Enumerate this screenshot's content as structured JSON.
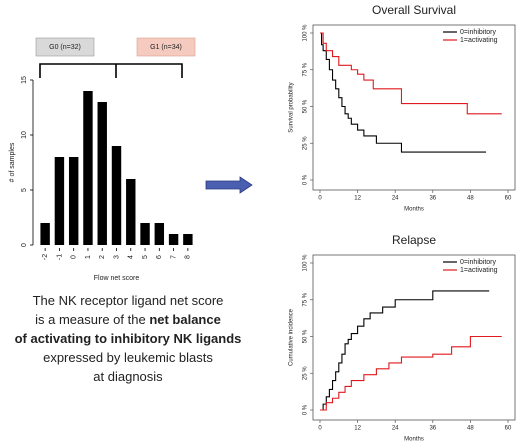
{
  "chart_data": [
    {
      "type": "bar",
      "categories": [
        "-2",
        "-1",
        "0",
        "1",
        "2",
        "3",
        "4",
        "5",
        "6",
        "7",
        "8"
      ],
      "values": [
        2,
        8,
        8,
        14,
        13,
        9,
        6,
        2,
        2,
        1,
        1
      ],
      "color": "#000000",
      "ylim": [
        0,
        15
      ],
      "yticks": [
        0,
        5,
        10,
        15
      ],
      "ylabel": "# of samples",
      "xlabel": "Flow net score",
      "group_labels": [
        "G0 (n=32)",
        "G1 (n=34)"
      ]
    },
    {
      "type": "line",
      "step": true,
      "title": "Overall Survival",
      "xlabel": "Months",
      "ylabel": "Survival probability",
      "xlim": [
        0,
        60
      ],
      "xticks": [
        0,
        12,
        24,
        36,
        48,
        60
      ],
      "ylim": [
        0,
        100
      ],
      "yticks": [
        {
          "value": 0,
          "label": "0 %"
        },
        {
          "value": 25,
          "label": "25 %"
        },
        {
          "value": 50,
          "label": "50 %"
        },
        {
          "value": 75,
          "label": "75 %"
        },
        {
          "value": 100,
          "label": "100 %"
        }
      ],
      "legend": "upper right",
      "series": [
        {
          "name": "0=inhibitory",
          "color": "#000000",
          "x": [
            0,
            0.5,
            1,
            2,
            3,
            4,
            5,
            6,
            7,
            8,
            9,
            10,
            12,
            14,
            18,
            26,
            53
          ],
          "values": [
            100,
            92,
            88,
            82,
            75,
            68,
            62,
            56,
            50,
            45,
            42,
            38,
            34,
            30,
            25,
            19,
            19
          ]
        },
        {
          "name": "1=activating",
          "color": "#e0191e",
          "x": [
            0,
            1,
            2,
            4,
            6,
            10,
            12,
            14,
            17,
            26,
            47,
            58
          ],
          "values": [
            100,
            93,
            88,
            84,
            78,
            75,
            72,
            68,
            62,
            52,
            45,
            45
          ]
        }
      ]
    },
    {
      "type": "line",
      "step": true,
      "title": "Relapse",
      "xlabel": "Months",
      "ylabel": "Cumulative incidence",
      "xlim": [
        0,
        60
      ],
      "xticks": [
        0,
        12,
        24,
        36,
        48,
        60
      ],
      "ylim": [
        0,
        100
      ],
      "yticks": [
        {
          "value": 0,
          "label": "0 %"
        },
        {
          "value": 25,
          "label": "25 %"
        },
        {
          "value": 50,
          "label": "50 %"
        },
        {
          "value": 75,
          "label": "75 %"
        },
        {
          "value": 100,
          "label": "100 %"
        }
      ],
      "legend": "upper right",
      "series": [
        {
          "name": "0=inhibitory",
          "color": "#000000",
          "x": [
            0,
            1,
            2,
            3,
            4,
            5,
            6,
            7,
            8,
            9,
            10,
            12,
            14,
            16,
            20,
            24,
            36,
            54
          ],
          "values": [
            0,
            4,
            9,
            14,
            20,
            26,
            32,
            38,
            45,
            48,
            52,
            57,
            62,
            66,
            70,
            75,
            81,
            81
          ]
        },
        {
          "name": "1=activating",
          "color": "#e0191e",
          "x": [
            0,
            2,
            4,
            6,
            8,
            10,
            14,
            18,
            22,
            26,
            36,
            42,
            48,
            58
          ],
          "values": [
            0,
            5,
            8,
            12,
            16,
            20,
            24,
            28,
            32,
            36,
            38,
            43,
            50,
            50
          ]
        }
      ]
    }
  ],
  "caption": [
    [
      {
        "text": "The NK receptor ligand net score",
        "bold": false
      }
    ],
    [
      {
        "text": "is a measure of the ",
        "bold": false
      },
      {
        "text": "net balance",
        "bold": true
      }
    ],
    [
      {
        "text": "of activating to inhibitory NK ligands",
        "bold": true
      }
    ],
    [
      {
        "text": "expressed by leukemic blasts",
        "bold": false
      }
    ],
    [
      {
        "text": "at diagnosis",
        "bold": false
      }
    ]
  ]
}
